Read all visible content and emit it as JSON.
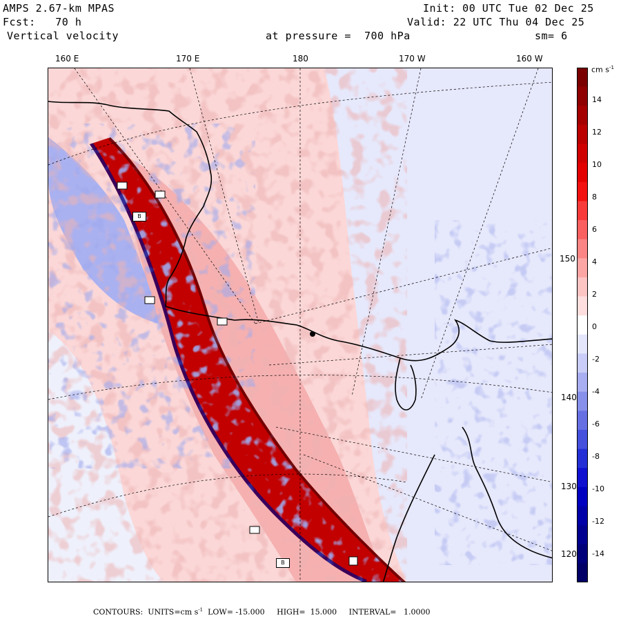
{
  "header": {
    "model": "AMPS 2.67-km MPAS",
    "fcst": "Fcst:   70 h",
    "field": "Vertical velocity",
    "pressure": "at pressure =  700 hPa",
    "init": "Init: 00 UTC Tue 02 Dec 25",
    "valid": "Valid: 22 UTC Thu 04 Dec 25",
    "smooth": "sm= 6"
  },
  "lon_labels": [
    "160 E",
    "170 E",
    "180",
    "170 W",
    "160 W"
  ],
  "lat_labels": [
    "150 W",
    "140 W",
    "130 W",
    "120 W"
  ],
  "station_labels": [
    "B",
    "B"
  ],
  "colorbar": {
    "units": "cm s",
    "units_exp": "-1",
    "labels": [
      "14",
      "12",
      "10",
      "8",
      "6",
      "4",
      "2",
      "0",
      "-2",
      "-4",
      "-6",
      "-8",
      "-10",
      "-12",
      "-14"
    ],
    "colors": [
      "#7a0000",
      "#8f0000",
      "#a50000",
      "#bb0000",
      "#d00000",
      "#e30000",
      "#f21010",
      "#f83a3a",
      "#fa6060",
      "#fb8484",
      "#fca5a5",
      "#fdc4c4",
      "#fedede",
      "#ffffff",
      "#e4e6fb",
      "#c9cdf7",
      "#a8aef1",
      "#8790ea",
      "#6670e3",
      "#4550dc",
      "#2430d5",
      "#1010d0",
      "#0000c0",
      "#0000a8",
      "#000090",
      "#00007a",
      "#000066"
    ]
  },
  "footer": {
    "text": "CONTOURS:  UNITS=cm s",
    "exp": "-1",
    "rest": "  LOW= -15.000     HIGH=  15.000     INTERVAL=   1.0000"
  }
}
